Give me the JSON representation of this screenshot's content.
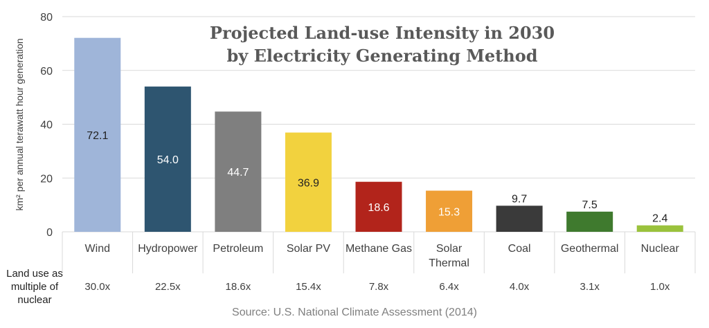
{
  "chart_data": {
    "type": "bar",
    "title_line1": "Projected Land-use Intensity in 2030",
    "title_line2": "by Electricity Generating Method",
    "ylabel": "km² per annual terawatt hour generation",
    "ylim": [
      0,
      80
    ],
    "yticks": [
      "0",
      "20",
      "40",
      "60",
      "80"
    ],
    "categories": [
      [
        "Wind"
      ],
      [
        "Hydropower"
      ],
      [
        "Petroleum"
      ],
      [
        "Solar PV"
      ],
      [
        "Methane Gas"
      ],
      [
        "Solar",
        "Thermal"
      ],
      [
        "Coal"
      ],
      [
        "Geothermal"
      ],
      [
        "Nuclear"
      ]
    ],
    "values": [
      72.1,
      54.0,
      44.7,
      36.9,
      18.6,
      15.3,
      9.7,
      7.5,
      2.4
    ],
    "value_labels": [
      "72.1",
      "54.0",
      "44.7",
      "36.9",
      "18.6",
      "15.3",
      "9.7",
      "7.5",
      "2.4"
    ],
    "colors": [
      "#9fb5d9",
      "#2e5570",
      "#7f7f7f",
      "#f2d23e",
      "#b2241b",
      "#ef9f36",
      "#3a3a3a",
      "#3f7a2e",
      "#9ac23c"
    ],
    "label_colors": [
      "#222222",
      "#ffffff",
      "#ffffff",
      "#222222",
      "#ffffff",
      "#ffffff",
      "#ffffff",
      "#ffffff",
      "#222222"
    ],
    "multiple_row_label": [
      "Land use as",
      "multiple of",
      "nuclear"
    ],
    "multiples": [
      "30.0x",
      "22.5x",
      "18.6x",
      "15.4x",
      "7.8x",
      "6.4x",
      "4.0x",
      "3.1x",
      "1.0x"
    ],
    "source": "Source: U.S. National Climate Assessment (2014)",
    "grid": true,
    "legend": "none"
  }
}
